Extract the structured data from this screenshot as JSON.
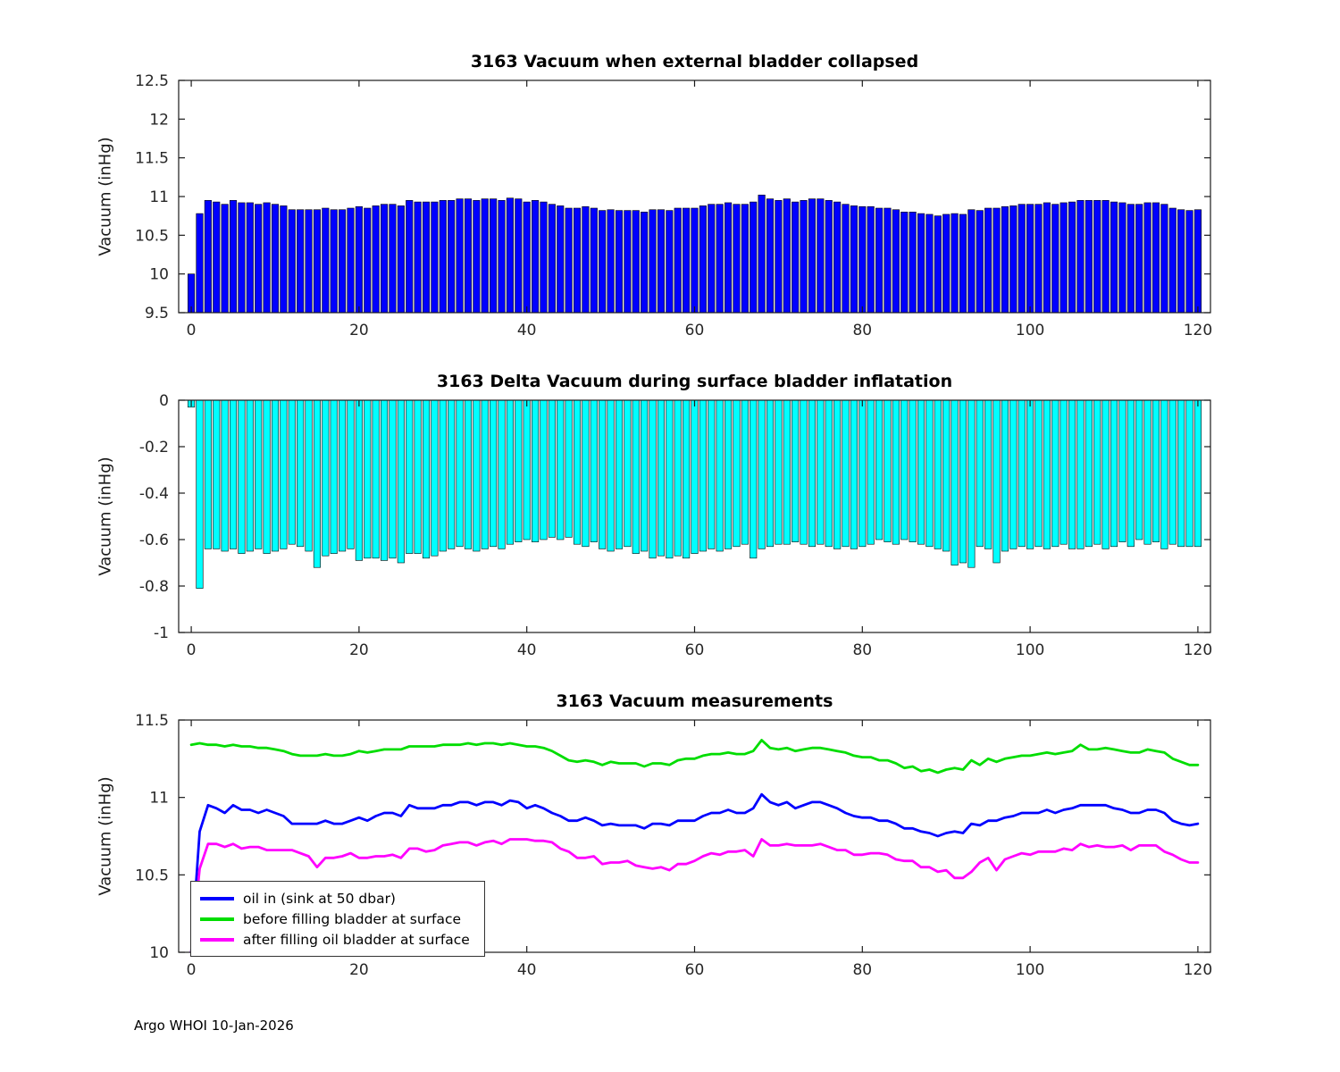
{
  "figure": {
    "footer": "Argo WHOI 10-Jan-2026",
    "background": "#ffffff"
  },
  "chart_data": [
    {
      "type": "bar",
      "title": "3163 Vacuum when external bladder collapsed",
      "xlabel": "",
      "ylabel": "Vacuum (inHg)",
      "xlim": [
        -1.5,
        121.5
      ],
      "ylim": [
        9.5,
        12.5
      ],
      "xticks": [
        0,
        20,
        40,
        60,
        80,
        100,
        120
      ],
      "yticks": [
        9.5,
        10,
        10.5,
        11,
        11.5,
        12,
        12.5
      ],
      "grid": false,
      "bar_color": "#0000ff",
      "bar_edge": "#000000",
      "baseline": 9.5,
      "x_note": "x = cycle index 0-120, one bar per cycle",
      "values": [
        10.0,
        10.78,
        10.95,
        10.93,
        10.9,
        10.95,
        10.92,
        10.92,
        10.9,
        10.92,
        10.9,
        10.88,
        10.83,
        10.83,
        10.83,
        10.83,
        10.85,
        10.83,
        10.83,
        10.85,
        10.87,
        10.85,
        10.88,
        10.9,
        10.9,
        10.88,
        10.95,
        10.93,
        10.93,
        10.93,
        10.95,
        10.95,
        10.97,
        10.97,
        10.95,
        10.97,
        10.97,
        10.95,
        10.98,
        10.97,
        10.93,
        10.95,
        10.93,
        10.9,
        10.88,
        10.85,
        10.85,
        10.87,
        10.85,
        10.82,
        10.83,
        10.82,
        10.82,
        10.82,
        10.8,
        10.83,
        10.83,
        10.82,
        10.85,
        10.85,
        10.85,
        10.88,
        10.9,
        10.9,
        10.92,
        10.9,
        10.9,
        10.93,
        11.02,
        10.97,
        10.95,
        10.97,
        10.93,
        10.95,
        10.97,
        10.97,
        10.95,
        10.93,
        10.9,
        10.88,
        10.87,
        10.87,
        10.85,
        10.85,
        10.83,
        10.8,
        10.8,
        10.78,
        10.77,
        10.75,
        10.77,
        10.78,
        10.77,
        10.83,
        10.82,
        10.85,
        10.85,
        10.87,
        10.88,
        10.9,
        10.9,
        10.9,
        10.92,
        10.9,
        10.92,
        10.93,
        10.95,
        10.95,
        10.95,
        10.95,
        10.93,
        10.92,
        10.9,
        10.9,
        10.92,
        10.92,
        10.9,
        10.85,
        10.83,
        10.82,
        10.83
      ]
    },
    {
      "type": "bar",
      "title": "3163 Delta Vacuum during surface bladder inflatation",
      "xlabel": "",
      "ylabel": "Vacuum (inHg)",
      "xlim": [
        -1.5,
        121.5
      ],
      "ylim": [
        -1,
        0
      ],
      "xticks": [
        0,
        20,
        40,
        60,
        80,
        100,
        120
      ],
      "yticks": [
        -1,
        -0.8,
        -0.6,
        -0.4,
        -0.2,
        0
      ],
      "grid": false,
      "bar_color": "#00ffff",
      "bar_edge": "#000000",
      "baseline": 0,
      "x_note": "x = cycle index 0-120, one bar per cycle",
      "values": [
        -0.03,
        -0.81,
        -0.64,
        -0.64,
        -0.65,
        -0.64,
        -0.66,
        -0.65,
        -0.64,
        -0.66,
        -0.65,
        -0.64,
        -0.62,
        -0.63,
        -0.65,
        -0.72,
        -0.67,
        -0.66,
        -0.65,
        -0.64,
        -0.69,
        -0.68,
        -0.68,
        -0.69,
        -0.68,
        -0.7,
        -0.66,
        -0.66,
        -0.68,
        -0.67,
        -0.65,
        -0.64,
        -0.63,
        -0.64,
        -0.65,
        -0.64,
        -0.63,
        -0.64,
        -0.62,
        -0.61,
        -0.6,
        -0.61,
        -0.6,
        -0.59,
        -0.6,
        -0.59,
        -0.62,
        -0.63,
        -0.61,
        -0.64,
        -0.65,
        -0.64,
        -0.63,
        -0.66,
        -0.65,
        -0.68,
        -0.67,
        -0.68,
        -0.67,
        -0.68,
        -0.66,
        -0.65,
        -0.64,
        -0.65,
        -0.64,
        -0.63,
        -0.62,
        -0.68,
        -0.64,
        -0.63,
        -0.62,
        -0.62,
        -0.61,
        -0.62,
        -0.63,
        -0.62,
        -0.63,
        -0.64,
        -0.63,
        -0.64,
        -0.63,
        -0.62,
        -0.6,
        -0.61,
        -0.62,
        -0.6,
        -0.61,
        -0.62,
        -0.63,
        -0.64,
        -0.65,
        -0.71,
        -0.7,
        -0.72,
        -0.63,
        -0.64,
        -0.7,
        -0.65,
        -0.64,
        -0.63,
        -0.64,
        -0.63,
        -0.64,
        -0.63,
        -0.62,
        -0.64,
        -0.64,
        -0.63,
        -0.62,
        -0.64,
        -0.63,
        -0.61,
        -0.63,
        -0.6,
        -0.62,
        -0.61,
        -0.64,
        -0.62,
        -0.63,
        -0.63,
        -0.63
      ]
    },
    {
      "type": "line",
      "title": "3163 Vacuum measurements",
      "xlabel": "",
      "ylabel": "Vacuum (inHg)",
      "xlim": [
        -1.5,
        121.5
      ],
      "ylim": [
        10,
        11.5
      ],
      "xticks": [
        0,
        20,
        40,
        60,
        80,
        100,
        120
      ],
      "yticks": [
        10,
        10.5,
        11,
        11.5
      ],
      "grid": false,
      "legend_position": "southwest",
      "x_note": "x = cycle index 0-120",
      "series": [
        {
          "name": "oil in (sink at 50 dbar)",
          "color": "#0000ff",
          "values": [
            10.0,
            10.78,
            10.95,
            10.93,
            10.9,
            10.95,
            10.92,
            10.92,
            10.9,
            10.92,
            10.9,
            10.88,
            10.83,
            10.83,
            10.83,
            10.83,
            10.85,
            10.83,
            10.83,
            10.85,
            10.87,
            10.85,
            10.88,
            10.9,
            10.9,
            10.88,
            10.95,
            10.93,
            10.93,
            10.93,
            10.95,
            10.95,
            10.97,
            10.97,
            10.95,
            10.97,
            10.97,
            10.95,
            10.98,
            10.97,
            10.93,
            10.95,
            10.93,
            10.9,
            10.88,
            10.85,
            10.85,
            10.87,
            10.85,
            10.82,
            10.83,
            10.82,
            10.82,
            10.82,
            10.8,
            10.83,
            10.83,
            10.82,
            10.85,
            10.85,
            10.85,
            10.88,
            10.9,
            10.9,
            10.92,
            10.9,
            10.9,
            10.93,
            11.02,
            10.97,
            10.95,
            10.97,
            10.93,
            10.95,
            10.97,
            10.97,
            10.95,
            10.93,
            10.9,
            10.88,
            10.87,
            10.87,
            10.85,
            10.85,
            10.83,
            10.8,
            10.8,
            10.78,
            10.77,
            10.75,
            10.77,
            10.78,
            10.77,
            10.83,
            10.82,
            10.85,
            10.85,
            10.87,
            10.88,
            10.9,
            10.9,
            10.9,
            10.92,
            10.9,
            10.92,
            10.93,
            10.95,
            10.95,
            10.95,
            10.95,
            10.93,
            10.92,
            10.9,
            10.9,
            10.92,
            10.92,
            10.9,
            10.85,
            10.83,
            10.82,
            10.83
          ]
        },
        {
          "name": "before filling bladder at surface",
          "color": "#00dd00",
          "values": [
            11.34,
            11.35,
            11.34,
            11.34,
            11.33,
            11.34,
            11.33,
            11.33,
            11.32,
            11.32,
            11.31,
            11.3,
            11.28,
            11.27,
            11.27,
            11.27,
            11.28,
            11.27,
            11.27,
            11.28,
            11.3,
            11.29,
            11.3,
            11.31,
            11.31,
            11.31,
            11.33,
            11.33,
            11.33,
            11.33,
            11.34,
            11.34,
            11.34,
            11.35,
            11.34,
            11.35,
            11.35,
            11.34,
            11.35,
            11.34,
            11.33,
            11.33,
            11.32,
            11.3,
            11.27,
            11.24,
            11.23,
            11.24,
            11.23,
            11.21,
            11.23,
            11.22,
            11.22,
            11.22,
            11.2,
            11.22,
            11.22,
            11.21,
            11.24,
            11.25,
            11.25,
            11.27,
            11.28,
            11.28,
            11.29,
            11.28,
            11.28,
            11.3,
            11.37,
            11.32,
            11.31,
            11.32,
            11.3,
            11.31,
            11.32,
            11.32,
            11.31,
            11.3,
            11.29,
            11.27,
            11.26,
            11.26,
            11.24,
            11.24,
            11.22,
            11.19,
            11.2,
            11.17,
            11.18,
            11.16,
            11.18,
            11.19,
            11.18,
            11.24,
            11.21,
            11.25,
            11.23,
            11.25,
            11.26,
            11.27,
            11.27,
            11.28,
            11.29,
            11.28,
            11.29,
            11.3,
            11.34,
            11.31,
            11.31,
            11.32,
            11.31,
            11.3,
            11.29,
            11.29,
            11.31,
            11.3,
            11.29,
            11.25,
            11.23,
            11.21,
            11.21
          ]
        },
        {
          "name": "after filling oil bladder at surface",
          "color": "#ff00ff",
          "values": [
            10.0,
            10.54,
            10.7,
            10.7,
            10.68,
            10.7,
            10.67,
            10.68,
            10.68,
            10.66,
            10.66,
            10.66,
            10.66,
            10.64,
            10.62,
            10.55,
            10.61,
            10.61,
            10.62,
            10.64,
            10.61,
            10.61,
            10.62,
            10.62,
            10.63,
            10.61,
            10.67,
            10.67,
            10.65,
            10.66,
            10.69,
            10.7,
            10.71,
            10.71,
            10.69,
            10.71,
            10.72,
            10.7,
            10.73,
            10.73,
            10.73,
            10.72,
            10.72,
            10.71,
            10.67,
            10.65,
            10.61,
            10.61,
            10.62,
            10.57,
            10.58,
            10.58,
            10.59,
            10.56,
            10.55,
            10.54,
            10.55,
            10.53,
            10.57,
            10.57,
            10.59,
            10.62,
            10.64,
            10.63,
            10.65,
            10.65,
            10.66,
            10.62,
            10.73,
            10.69,
            10.69,
            10.7,
            10.69,
            10.69,
            10.69,
            10.7,
            10.68,
            10.66,
            10.66,
            10.63,
            10.63,
            10.64,
            10.64,
            10.63,
            10.6,
            10.59,
            10.59,
            10.55,
            10.55,
            10.52,
            10.53,
            10.48,
            10.48,
            10.52,
            10.58,
            10.61,
            10.53,
            10.6,
            10.62,
            10.64,
            10.63,
            10.65,
            10.65,
            10.65,
            10.67,
            10.66,
            10.7,
            10.68,
            10.69,
            10.68,
            10.68,
            10.69,
            10.66,
            10.69,
            10.69,
            10.69,
            10.65,
            10.63,
            10.6,
            10.58,
            10.58
          ]
        }
      ]
    }
  ]
}
